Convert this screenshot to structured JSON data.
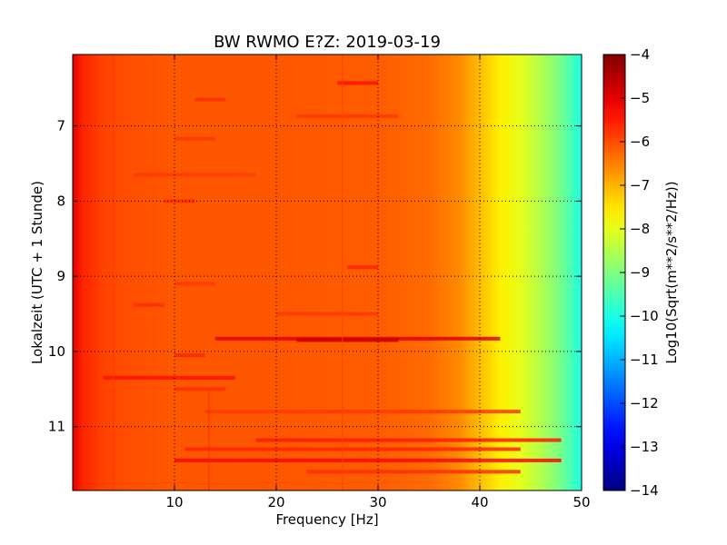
{
  "chart_data": {
    "type": "heatmap",
    "title": "BW RWMO E?Z: 2019-03-19",
    "xlabel": "Frequency [Hz]",
    "ylabel": "Lokalzeit (UTC + 1 Stunde)",
    "xlim": [
      0,
      50
    ],
    "ylim": [
      6.05,
      11.85
    ],
    "x_ticks": [
      10,
      20,
      30,
      40,
      50
    ],
    "y_ticks": [
      7,
      8,
      9,
      10,
      11
    ],
    "y_inverted": true,
    "grid": true,
    "colormap": "jet",
    "colorbar": {
      "label": "Log10(Sqrt(m**2/s**2/Hz))",
      "min": -14,
      "max": -4,
      "ticks": [
        -4,
        -5,
        -6,
        -7,
        -8,
        -9,
        -10,
        -11,
        -12,
        -13,
        -14
      ]
    },
    "frequency_profile": {
      "x": [
        0,
        1,
        3,
        5,
        10,
        20,
        30,
        35,
        38,
        40,
        42,
        44,
        46,
        48,
        50
      ],
      "values": [
        -5.0,
        -5.6,
        -5.9,
        -6.0,
        -6.1,
        -6.1,
        -6.15,
        -6.3,
        -6.6,
        -7.1,
        -7.6,
        -8.0,
        -8.5,
        -9.1,
        -10.0
      ]
    },
    "bands": [
      {
        "time": 6.43,
        "f_start": 26,
        "f_end": 30,
        "value": -5.4
      },
      {
        "time": 6.65,
        "f_start": 12,
        "f_end": 15,
        "value": -5.7
      },
      {
        "time": 6.87,
        "f_start": 22,
        "f_end": 32,
        "value": -5.8
      },
      {
        "time": 7.17,
        "f_start": 10,
        "f_end": 14,
        "value": -5.8
      },
      {
        "time": 7.65,
        "f_start": 6,
        "f_end": 18,
        "value": -5.8
      },
      {
        "time": 8.0,
        "f_start": 9,
        "f_end": 12,
        "value": -5.7
      },
      {
        "time": 8.88,
        "f_start": 27,
        "f_end": 30,
        "value": -5.6
      },
      {
        "time": 9.1,
        "f_start": 10,
        "f_end": 14,
        "value": -5.8
      },
      {
        "time": 9.38,
        "f_start": 6,
        "f_end": 9,
        "value": -5.7
      },
      {
        "time": 9.5,
        "f_start": 20,
        "f_end": 30,
        "value": -5.8
      },
      {
        "time": 9.83,
        "f_start": 14,
        "f_end": 42,
        "value": -5.0
      },
      {
        "time": 9.85,
        "f_start": 22,
        "f_end": 32,
        "value": -4.7
      },
      {
        "time": 10.05,
        "f_start": 10,
        "f_end": 13,
        "value": -5.6
      },
      {
        "time": 10.35,
        "f_start": 3,
        "f_end": 16,
        "value": -5.4
      },
      {
        "time": 10.5,
        "f_start": 10,
        "f_end": 15,
        "value": -5.7
      },
      {
        "time": 10.8,
        "f_start": 13,
        "f_end": 44,
        "value": -5.8
      },
      {
        "time": 11.18,
        "f_start": 18,
        "f_end": 48,
        "value": -5.5
      },
      {
        "time": 11.3,
        "f_start": 11,
        "f_end": 44,
        "value": -5.6
      },
      {
        "time": 11.45,
        "f_start": 10,
        "f_end": 48,
        "value": -5.3
      },
      {
        "time": 11.6,
        "f_start": 23,
        "f_end": 44,
        "value": -5.7
      }
    ],
    "lines": [
      {
        "frequency": 4.0,
        "t_start": 6.05,
        "t_end": 11.85,
        "value": -5.8
      },
      {
        "frequency": 26.5,
        "t_start": 6.05,
        "t_end": 11.85,
        "value": -5.9
      },
      {
        "frequency": 13.4,
        "t_start": 10.5,
        "t_end": 11.85,
        "value": -5.6
      }
    ]
  }
}
